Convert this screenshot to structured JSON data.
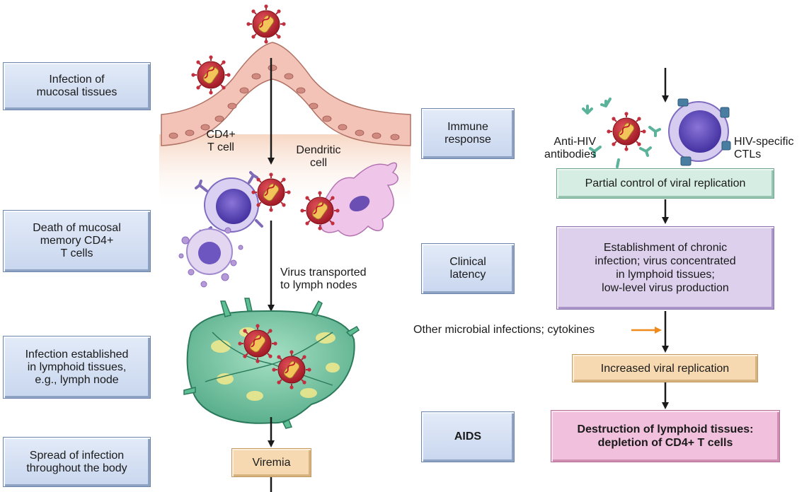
{
  "stages": {
    "mucosal": "Infection of\nmucosal tissues",
    "death": "Death of mucosal\nmemory CD4+\nT cells",
    "lymphoid": "Infection established\nin lymphoid tissues,\ne.g., lymph node",
    "spread": "Spread of infection\nthroughout the body",
    "immune": "Immune\nresponse",
    "latency": "Clinical\nlatency",
    "aids": "AIDS"
  },
  "labels": {
    "cd4": "CD4+\nT cell",
    "dendritic": "Dendritic\ncell",
    "transport": "Virus transported\nto lymph nodes",
    "antibodies": "Anti-HIV\nantibodies",
    "ctls": "HIV-specific\nCTLs",
    "other": "Other microbial infections; cytokines"
  },
  "boxes": {
    "viremia": "Viremia",
    "partial": "Partial control of viral replication",
    "chronic": "Establishment of chronic\ninfection; virus concentrated\nin lymphoid tissues;\nlow-level virus production",
    "increased": "Increased viral replication",
    "destruction": "Destruction of lymphoid tissues:\ndepletion of CD4+ T cells"
  },
  "colors": {
    "stage_fill": "#d3deef",
    "green_box": "#d5ede3",
    "purple_box": "#dcd0ec",
    "tan_box": "#f6d9b1",
    "pink_box": "#f0c0dc",
    "arrow": "#1a1a1a",
    "orange_arrow": "#f08a1c"
  }
}
